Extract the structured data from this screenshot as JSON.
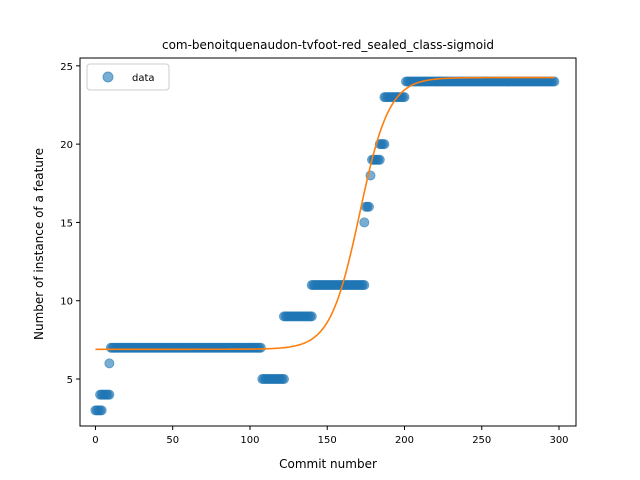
{
  "chart_data": {
    "type": "scatter",
    "title": "com-benoitquenaudon-tvfoot-red_sealed_class-sigmoid",
    "xlabel": "Commit number",
    "ylabel": "Number of instance of a feature",
    "xlim": [
      -10,
      311
    ],
    "ylim": [
      2.0,
      25.5
    ],
    "xticks": [
      0,
      50,
      100,
      150,
      200,
      250,
      300
    ],
    "yticks": [
      5,
      10,
      15,
      20,
      25
    ],
    "grid": false,
    "legend": {
      "placement": "top-left",
      "entries": [
        "data"
      ]
    },
    "colors": {
      "data": "#1f77b4",
      "fit": "#ff7f0e"
    },
    "series": [
      {
        "name": "data",
        "kind": "scatter",
        "segments": [
          {
            "x_start": 0,
            "x_end": 4,
            "y": 3
          },
          {
            "x_start": 3,
            "x_end": 9,
            "y": 4
          },
          {
            "x_start": 9,
            "x_end": 9,
            "y": 6
          },
          {
            "x_start": 10,
            "x_end": 107,
            "y": 7
          },
          {
            "x_start": 108,
            "x_end": 122,
            "y": 5
          },
          {
            "x_start": 122,
            "x_end": 140,
            "y": 9
          },
          {
            "x_start": 140,
            "x_end": 174,
            "y": 11
          },
          {
            "x_start": 174,
            "x_end": 174,
            "y": 15
          },
          {
            "x_start": 175,
            "x_end": 177,
            "y": 16
          },
          {
            "x_start": 178,
            "x_end": 178,
            "y": 18
          },
          {
            "x_start": 179,
            "x_end": 184,
            "y": 19
          },
          {
            "x_start": 184,
            "x_end": 187,
            "y": 20
          },
          {
            "x_start": 187,
            "x_end": 200,
            "y": 23
          },
          {
            "x_start": 201,
            "x_end": 297,
            "y": 24
          }
        ]
      },
      {
        "kind": "line",
        "function": "sigmoid",
        "params": {
          "low": 6.9,
          "high": 24.25,
          "x0": 171,
          "k": 0.105
        },
        "x_range": [
          0,
          297
        ]
      }
    ]
  }
}
